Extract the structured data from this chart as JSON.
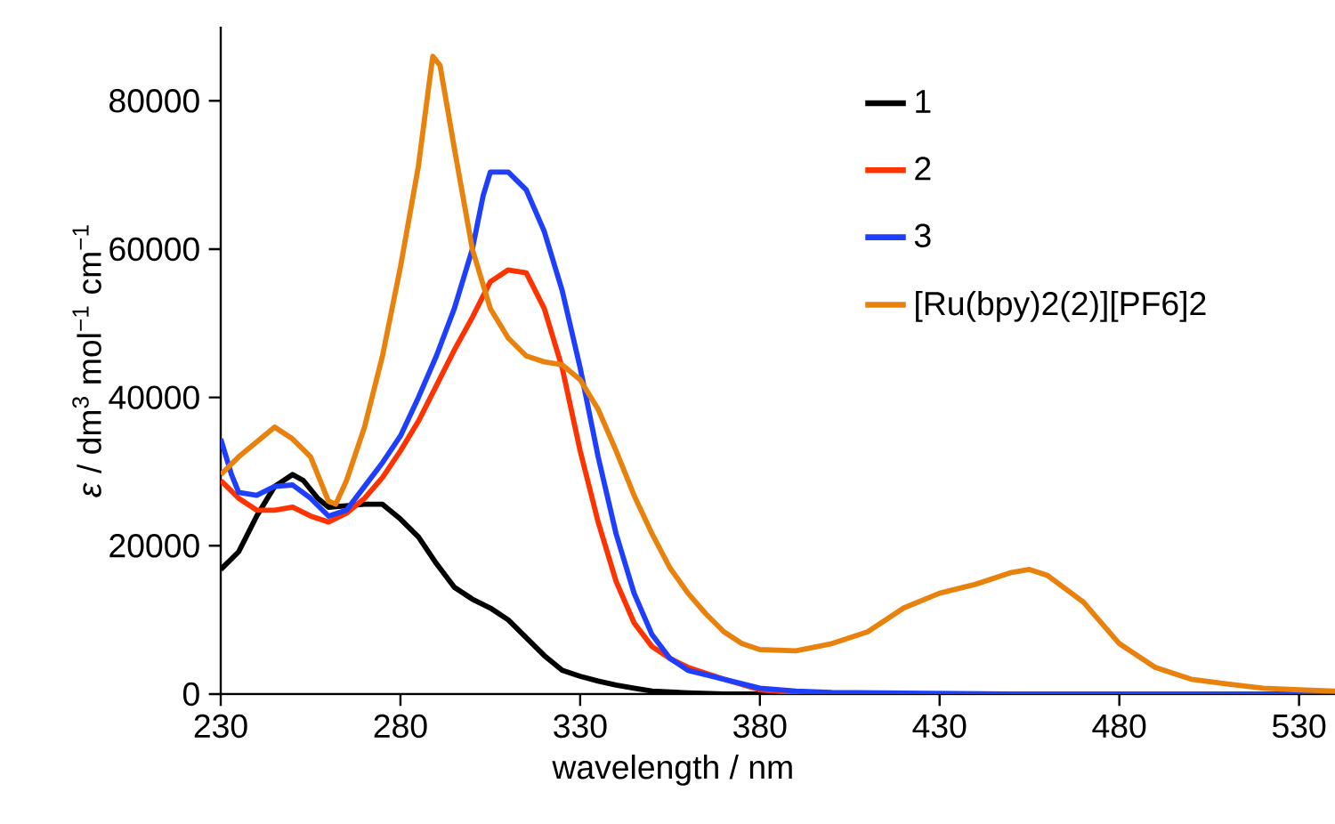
{
  "chart_data": {
    "type": "line",
    "xlabel": "wavelength / nm",
    "ylabel": "*ε* / dm$^{3}$ mol$^{−1}$ cm$^{−1}$",
    "xlim": [
      230,
      540
    ],
    "ylim": [
      0,
      90000
    ],
    "xticks": [
      230,
      280,
      330,
      380,
      430,
      480,
      530
    ],
    "yticks": [
      0,
      20000,
      40000,
      60000,
      80000
    ],
    "legend": "top right",
    "series": [
      {
        "name": "1",
        "color": "#000000",
        "x": [
          230,
          235,
          240,
          245,
          250,
          253,
          257,
          260,
          265,
          270,
          275,
          280,
          285,
          290,
          295,
          300,
          305,
          310,
          315,
          320,
          325,
          330,
          335,
          340,
          345,
          350,
          360,
          370,
          400,
          450,
          500,
          540
        ],
        "values": [
          16800,
          19200,
          24000,
          28000,
          29600,
          28800,
          26400,
          25200,
          25400,
          25600,
          25600,
          23600,
          21200,
          17600,
          14400,
          12800,
          11600,
          10000,
          7600,
          5200,
          3200,
          2400,
          1760,
          1200,
          800,
          400,
          160,
          0,
          0,
          0,
          0,
          0
        ]
      },
      {
        "name": "2",
        "color": "#ff3300",
        "x": [
          230,
          235,
          240,
          245,
          250,
          255,
          260,
          265,
          270,
          275,
          280,
          285,
          290,
          295,
          300,
          305,
          310,
          315,
          320,
          325,
          330,
          335,
          340,
          345,
          350,
          355,
          360,
          370,
          380,
          390,
          400,
          450,
          500,
          540
        ],
        "values": [
          28800,
          26400,
          24800,
          24800,
          25200,
          24000,
          23200,
          24400,
          26400,
          29200,
          32800,
          36800,
          41600,
          46400,
          50800,
          55600,
          57200,
          56800,
          52000,
          44000,
          32800,
          23200,
          15200,
          9600,
          6400,
          4800,
          3600,
          2000,
          560,
          200,
          0,
          0,
          0,
          0
        ]
      },
      {
        "name": "3",
        "color": "#1f3fff",
        "x": [
          230,
          233,
          235,
          240,
          245,
          250,
          255,
          260,
          265,
          270,
          275,
          280,
          285,
          290,
          295,
          300,
          303,
          305,
          310,
          315,
          320,
          325,
          330,
          335,
          340,
          345,
          350,
          355,
          360,
          370,
          380,
          390,
          400,
          450,
          500,
          540
        ],
        "values": [
          34400,
          29600,
          27200,
          26800,
          28000,
          28200,
          26400,
          24000,
          24800,
          28000,
          31200,
          34800,
          40000,
          45600,
          52000,
          60000,
          67200,
          70400,
          70400,
          68000,
          62400,
          54400,
          44000,
          32000,
          21600,
          13600,
          8000,
          4800,
          3200,
          2000,
          800,
          400,
          200,
          0,
          0,
          0
        ]
      },
      {
        "name": "[Ru(bpy)2(2)][PF6]2",
        "color": "#e8820c",
        "x": [
          230,
          235,
          240,
          245,
          250,
          255,
          260,
          262,
          265,
          270,
          275,
          280,
          285,
          288,
          289,
          291,
          295,
          300,
          305,
          310,
          315,
          320,
          325,
          330,
          335,
          340,
          345,
          350,
          355,
          360,
          365,
          370,
          375,
          380,
          390,
          400,
          410,
          420,
          430,
          440,
          450,
          455,
          460,
          470,
          480,
          490,
          500,
          510,
          520,
          530,
          540
        ],
        "values": [
          29600,
          32000,
          34000,
          36000,
          34400,
          32000,
          26000,
          25600,
          28800,
          36000,
          45600,
          57600,
          71200,
          82400,
          86000,
          84800,
          73600,
          60000,
          52000,
          48000,
          45600,
          44800,
          44400,
          42400,
          38400,
          32800,
          26800,
          21600,
          17000,
          13600,
          10800,
          8400,
          6800,
          6000,
          5840,
          6800,
          8400,
          11600,
          13600,
          14800,
          16400,
          16800,
          16000,
          12400,
          6800,
          3600,
          2000,
          1360,
          800,
          560,
          400
        ]
      }
    ]
  }
}
